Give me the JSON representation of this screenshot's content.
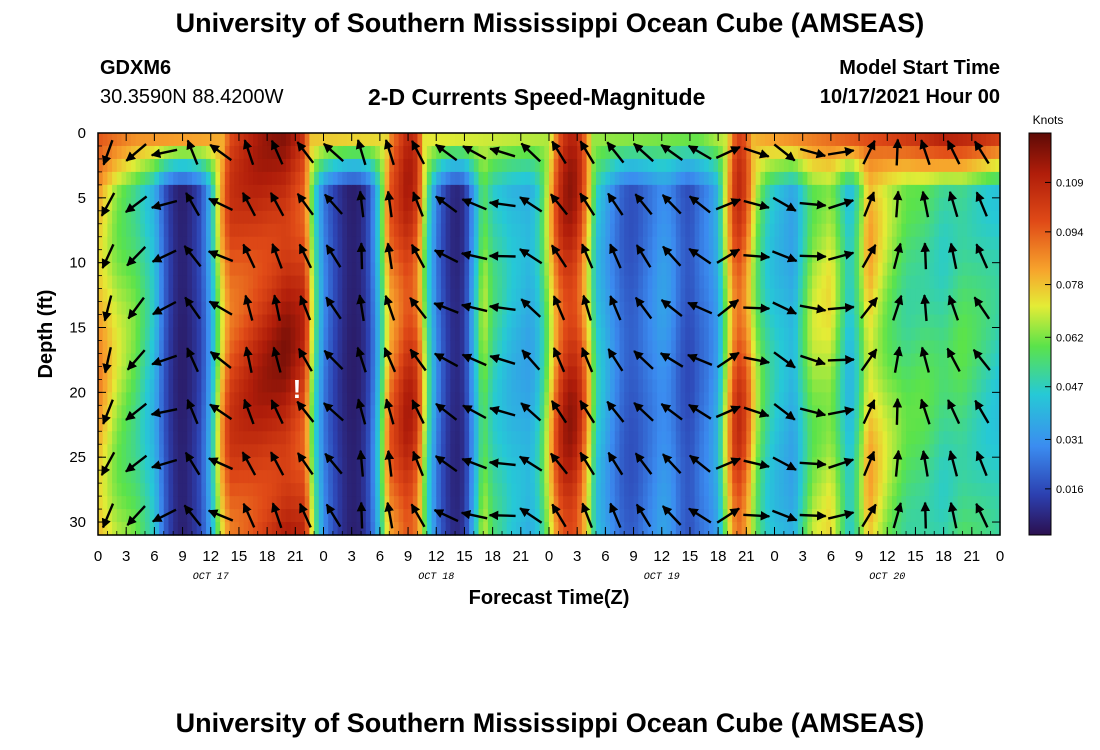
{
  "header": {
    "title": "University of Southern Mississippi Ocean Cube (AMSEAS)",
    "station_id": "GDXM6",
    "coords": "30.3590N  88.4200W",
    "plot_title": "2-D Currents Speed-Magnitude",
    "start_label": "Model Start Time",
    "start_value": "10/17/2021 Hour 00"
  },
  "footer": {
    "title": "University of Southern Mississippi Ocean Cube (AMSEAS)"
  },
  "chart_data": {
    "type": "heatmap",
    "title": "2-D Currents Speed-Magnitude",
    "xlabel": "Forecast Time(Z)",
    "ylabel": "Depth (ft)",
    "x_ticks": [
      "0",
      "3",
      "6",
      "9",
      "12",
      "15",
      "18",
      "21",
      "0",
      "3",
      "6",
      "9",
      "12",
      "15",
      "18",
      "21",
      "0",
      "3",
      "6",
      "9",
      "12",
      "15",
      "18",
      "21",
      "0",
      "3",
      "6",
      "9",
      "12",
      "15",
      "18",
      "21",
      "0"
    ],
    "date_labels": [
      {
        "label": "OCT 17",
        "hour": 12
      },
      {
        "label": "OCT 18",
        "hour": 36
      },
      {
        "label": "OCT 19",
        "hour": 60
      },
      {
        "label": "OCT 20",
        "hour": 84
      }
    ],
    "x_range_hours": [
      0,
      96
    ],
    "y_ticks": [
      0,
      5,
      10,
      15,
      20,
      25,
      30
    ],
    "y_range_ft": [
      0,
      31
    ],
    "colorbar": {
      "label": "Knots",
      "ticks": [
        "0.109",
        "0.094",
        "0.078",
        "0.062",
        "0.047",
        "0.031",
        "0.016"
      ],
      "range": [
        0.002,
        0.124
      ]
    },
    "speed_profile_by_hour": [
      [
        0,
        0.09
      ],
      [
        2,
        0.072
      ],
      [
        4,
        0.062
      ],
      [
        6,
        0.045
      ],
      [
        7,
        0.022
      ],
      [
        8,
        0.01
      ],
      [
        9,
        0.006
      ],
      [
        10,
        0.01
      ],
      [
        11,
        0.018
      ],
      [
        12,
        0.04
      ],
      [
        13,
        0.08
      ],
      [
        14,
        0.105
      ],
      [
        17,
        0.114
      ],
      [
        20,
        0.12
      ],
      [
        22,
        0.11
      ],
      [
        23,
        0.06
      ],
      [
        24,
        0.03
      ],
      [
        25,
        0.018
      ],
      [
        26,
        0.01
      ],
      [
        27,
        0.006
      ],
      [
        28,
        0.008
      ],
      [
        29,
        0.02
      ],
      [
        30,
        0.05
      ],
      [
        31,
        0.095
      ],
      [
        33,
        0.115
      ],
      [
        34,
        0.105
      ],
      [
        35,
        0.06
      ],
      [
        36,
        0.03
      ],
      [
        37,
        0.015
      ],
      [
        38,
        0.008
      ],
      [
        39,
        0.012
      ],
      [
        40,
        0.04
      ],
      [
        41,
        0.07
      ],
      [
        42,
        0.055
      ],
      [
        44,
        0.045
      ],
      [
        46,
        0.04
      ],
      [
        47,
        0.05
      ],
      [
        48,
        0.075
      ],
      [
        49,
        0.105
      ],
      [
        50,
        0.118
      ],
      [
        51,
        0.114
      ],
      [
        52,
        0.09
      ],
      [
        53,
        0.05
      ],
      [
        54,
        0.04
      ],
      [
        55,
        0.03
      ],
      [
        56,
        0.022
      ],
      [
        57,
        0.02
      ],
      [
        58,
        0.025
      ],
      [
        60,
        0.035
      ],
      [
        61,
        0.032
      ],
      [
        62,
        0.022
      ],
      [
        63,
        0.018
      ],
      [
        64,
        0.025
      ],
      [
        65,
        0.03
      ],
      [
        66,
        0.04
      ],
      [
        67,
        0.08
      ],
      [
        68,
        0.11
      ],
      [
        69,
        0.1
      ],
      [
        70,
        0.07
      ],
      [
        71,
        0.055
      ],
      [
        72,
        0.048
      ],
      [
        74,
        0.04
      ],
      [
        75,
        0.055
      ],
      [
        76,
        0.07
      ],
      [
        78,
        0.075
      ],
      [
        79,
        0.06
      ],
      [
        80,
        0.045
      ],
      [
        81,
        0.06
      ],
      [
        82,
        0.085
      ],
      [
        84,
        0.07
      ],
      [
        86,
        0.06
      ],
      [
        88,
        0.06
      ],
      [
        90,
        0.055
      ],
      [
        92,
        0.06
      ],
      [
        94,
        0.055
      ],
      [
        96,
        0.05
      ]
    ],
    "surface_hotspots_by_hour": [
      [
        0,
        0.095
      ],
      [
        2,
        0.09
      ],
      [
        4,
        0.085
      ],
      [
        64,
        0.06
      ],
      [
        70,
        0.08
      ],
      [
        88,
        0.105
      ],
      [
        90,
        0.11
      ],
      [
        92,
        0.108
      ],
      [
        94,
        0.105
      ],
      [
        96,
        0.1
      ]
    ],
    "arrow_rows_depth_ft": [
      0,
      4,
      8,
      12,
      16,
      20,
      24,
      28
    ],
    "arrow_direction_deg_by_hour": [
      [
        0,
        200
      ],
      [
        3,
        225
      ],
      [
        6,
        250
      ],
      [
        9,
        330
      ],
      [
        12,
        300
      ],
      [
        15,
        340
      ],
      [
        18,
        340
      ],
      [
        21,
        330
      ],
      [
        24,
        320
      ],
      [
        27,
        350
      ],
      [
        30,
        345
      ],
      [
        33,
        330
      ],
      [
        36,
        300
      ],
      [
        39,
        290
      ],
      [
        42,
        280
      ],
      [
        45,
        310
      ],
      [
        48,
        330
      ],
      [
        51,
        335
      ],
      [
        54,
        330
      ],
      [
        57,
        320
      ],
      [
        60,
        310
      ],
      [
        63,
        300
      ],
      [
        66,
        60
      ],
      [
        69,
        100
      ],
      [
        72,
        120
      ],
      [
        75,
        100
      ],
      [
        78,
        80
      ],
      [
        81,
        30
      ],
      [
        84,
        10
      ],
      [
        87,
        350
      ],
      [
        90,
        340
      ],
      [
        93,
        330
      ],
      [
        96,
        320
      ]
    ],
    "annotations": [
      "!"
    ]
  }
}
